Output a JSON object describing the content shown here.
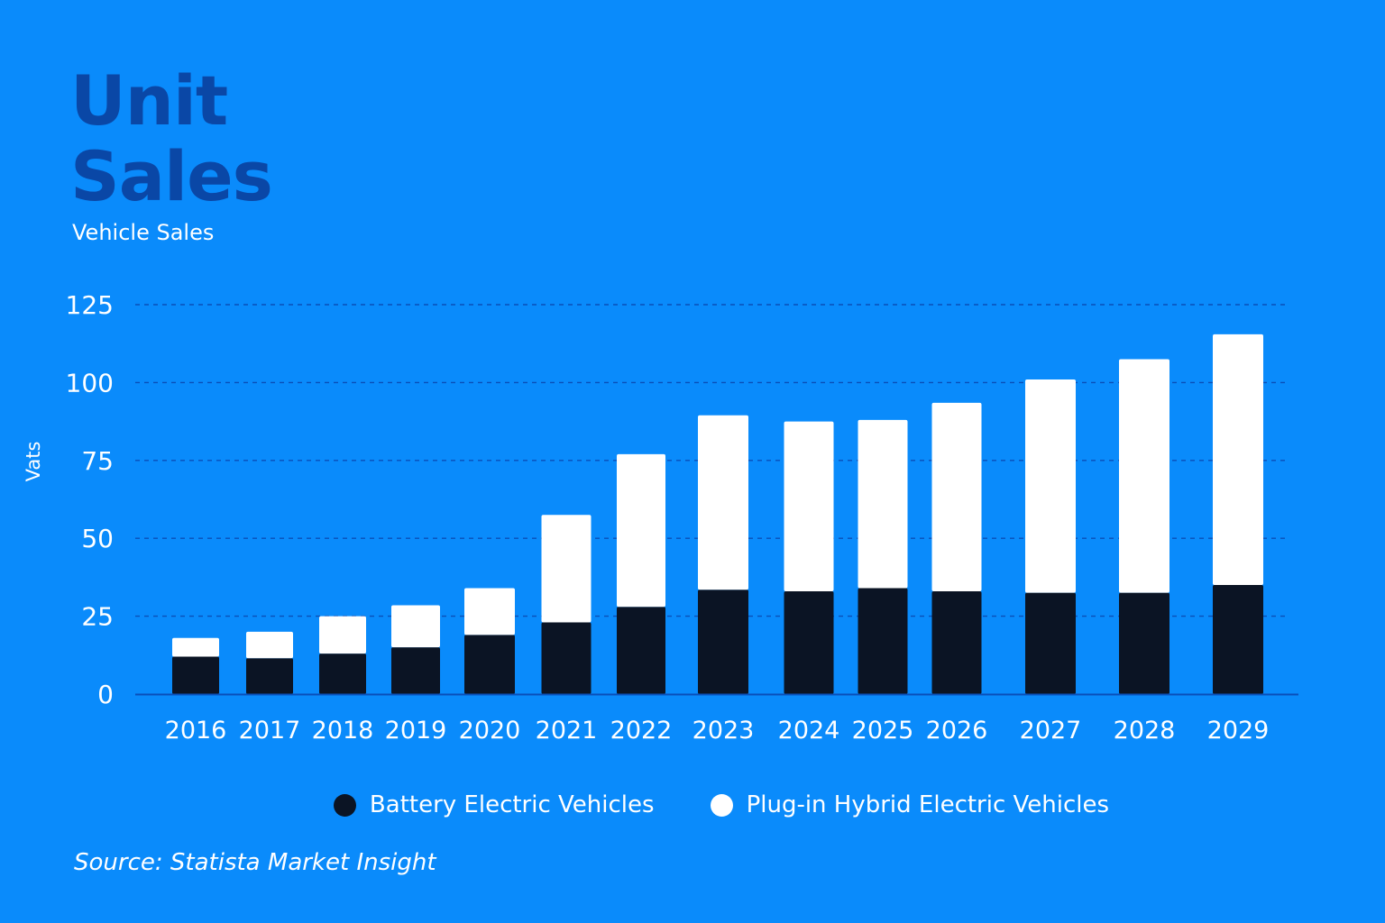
{
  "title": "Unit Sales",
  "subtitle": "Vehicle Sales",
  "source": "Source: Statista Market Insight",
  "colors": {
    "background": "#0a8bfb",
    "title": "#0a47a6",
    "battery": "#0b1424",
    "plugin": "#ffffff",
    "grid": "#0a4fb8"
  },
  "chart_data": {
    "type": "bar",
    "stacked": true,
    "categories": [
      "2016",
      "2017",
      "2018",
      "2019",
      "2020",
      "2021",
      "2022",
      "2023",
      "2024",
      "2025",
      "2026",
      "2027",
      "2028",
      "2029"
    ],
    "series": [
      {
        "name": "Battery Electric Vehicles",
        "color": "#0b1424",
        "values": [
          12,
          11.5,
          13,
          15,
          19,
          23,
          28,
          33.5,
          33,
          34,
          33,
          32.5,
          32.5,
          35
        ]
      },
      {
        "name": "Plug-in Hybrid Electric Vehicles",
        "color": "#ffffff",
        "values": [
          6,
          8.5,
          12,
          13.5,
          15,
          34.5,
          49,
          56,
          54.5,
          54,
          60.5,
          68.5,
          75,
          80.5
        ]
      }
    ],
    "xlabel": "",
    "ylabel": "Vats",
    "ylim": [
      0,
      125
    ],
    "yticks": [
      "0",
      "25",
      "50",
      "75",
      "100",
      "125"
    ],
    "grid": true,
    "grid_style": "dashed",
    "legend_position": "bottom"
  }
}
